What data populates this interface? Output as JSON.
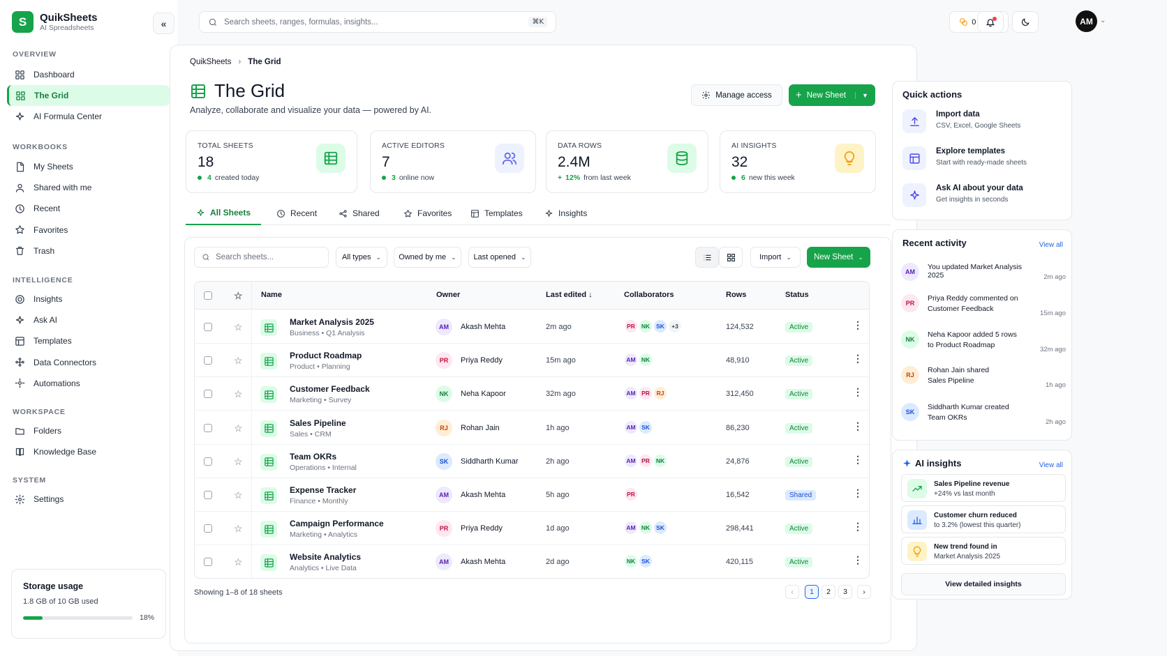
{
  "brand": {
    "name": "QuikSheets",
    "subtitle": "AI Spreadsheets",
    "logo_letter": "S"
  },
  "sidebar": {
    "sections": [
      {
        "label": "OVERVIEW",
        "items": [
          {
            "label": "Dashboard",
            "icon": "grid-icon"
          },
          {
            "label": "The Grid",
            "icon": "grid-icon",
            "active": true
          },
          {
            "label": "AI Formula Center",
            "icon": "sparkle-icon"
          }
        ]
      },
      {
        "label": "WORKBOOKS",
        "items": [
          {
            "label": "My Sheets",
            "icon": "file-icon"
          },
          {
            "label": "Shared with me",
            "icon": "user-icon"
          },
          {
            "label": "Recent",
            "icon": "clock-icon"
          },
          {
            "label": "Favorites",
            "icon": "star-icon"
          },
          {
            "label": "Trash",
            "icon": "trash-icon"
          }
        ]
      },
      {
        "label": "INTELLIGENCE",
        "items": [
          {
            "label": "Insights",
            "icon": "target-icon"
          },
          {
            "label": "Ask AI",
            "icon": "sparkle-icon"
          },
          {
            "label": "Templates",
            "icon": "template-icon"
          },
          {
            "label": "Data Connectors",
            "icon": "connector-icon"
          },
          {
            "label": "Automations",
            "icon": "automation-icon"
          }
        ]
      },
      {
        "label": "WORKSPACE",
        "items": [
          {
            "label": "Folders",
            "icon": "folder-icon"
          },
          {
            "label": "Knowledge Base",
            "icon": "book-icon"
          }
        ]
      },
      {
        "label": "SYSTEM",
        "items": [
          {
            "label": "Settings",
            "icon": "gear-icon"
          }
        ]
      }
    ],
    "storage": {
      "title": "Storage usage",
      "used": "1.8 GB of 10 GB used",
      "percent_label": "18%",
      "percent": 18
    }
  },
  "topbar": {
    "search_placeholder": "Search sheets, ranges, formulas, insights...",
    "shortcut": "⌘K",
    "points": "0 points",
    "avatar": "AM"
  },
  "breadcrumb": {
    "root": "QuikSheets",
    "current": "The Grid"
  },
  "page": {
    "title": "The Grid",
    "subtitle": "Analyze, collaborate and visualize your data — powered by AI.",
    "manage_access": "Manage access",
    "new_sheet": "New Sheet"
  },
  "stats": [
    {
      "label": "TOTAL SHEETS",
      "value": "18",
      "note_num": "4",
      "note": "created today",
      "icon": "sheet-icon",
      "color": "#16a34a",
      "bg": "#dcfce7",
      "prefix": "dot"
    },
    {
      "label": "ACTIVE EDITORS",
      "value": "7",
      "note_num": "3",
      "note": "online now",
      "icon": "users-icon",
      "color": "#6366f1",
      "bg": "#eef2ff",
      "prefix": "dot"
    },
    {
      "label": "DATA ROWS",
      "value": "2.4M",
      "note_num": "12%",
      "note": "from last week",
      "icon": "database-icon",
      "color": "#16a34a",
      "bg": "#dcfce7",
      "prefix": "+"
    },
    {
      "label": "AI INSIGHTS",
      "value": "32",
      "note_num": "6",
      "note": "new this week",
      "icon": "bulb-icon",
      "color": "#f59e0b",
      "bg": "#fef3c7",
      "prefix": "dot"
    }
  ],
  "tabs": [
    {
      "label": "All Sheets",
      "icon": "sparkle-icon",
      "active": true
    },
    {
      "label": "Recent",
      "icon": "clock-icon"
    },
    {
      "label": "Shared",
      "icon": "share-icon"
    },
    {
      "label": "Favorites",
      "icon": "star-icon"
    },
    {
      "label": "Templates",
      "icon": "template-icon"
    },
    {
      "label": "Insights",
      "icon": "sparkle-icon"
    }
  ],
  "filters": {
    "search_placeholder": "Search sheets...",
    "type": "All types",
    "owner": "Owned by me",
    "sort": "Last opened",
    "import": "Import",
    "new_sheet": "New Sheet"
  },
  "table": {
    "columns": {
      "name": "Name",
      "owner": "Owner",
      "edited": "Last edited",
      "collaborators": "Collaborators",
      "rows": "Rows",
      "status": "Status"
    },
    "rows": [
      {
        "name": "Market Analysis 2025",
        "sub": "Business • Q1 Analysis",
        "owner_initials": "AM",
        "owner": "Akash Mehta",
        "edited": "2m ago",
        "collabs": [
          "PR",
          "NK",
          "SK"
        ],
        "more": "+3",
        "rows": "124,532",
        "status": "Active"
      },
      {
        "name": "Product Roadmap",
        "sub": "Product • Planning",
        "owner_initials": "PR",
        "owner": "Priya Reddy",
        "edited": "15m ago",
        "collabs": [
          "AM",
          "NK"
        ],
        "more": "",
        "rows": "48,910",
        "status": "Active"
      },
      {
        "name": "Customer Feedback",
        "sub": "Marketing • Survey",
        "owner_initials": "NK",
        "owner": "Neha Kapoor",
        "edited": "32m ago",
        "collabs": [
          "AM",
          "PR",
          "RJ"
        ],
        "more": "",
        "rows": "312,450",
        "status": "Active"
      },
      {
        "name": "Sales Pipeline",
        "sub": "Sales • CRM",
        "owner_initials": "RJ",
        "owner": "Rohan Jain",
        "edited": "1h ago",
        "collabs": [
          "AM",
          "SK"
        ],
        "more": "",
        "rows": "86,230",
        "status": "Active"
      },
      {
        "name": "Team OKRs",
        "sub": "Operations • Internal",
        "owner_initials": "SK",
        "owner": "Siddharth Kumar",
        "edited": "2h ago",
        "collabs": [
          "AM",
          "PR",
          "NK"
        ],
        "more": "",
        "rows": "24,876",
        "status": "Active"
      },
      {
        "name": "Expense Tracker",
        "sub": "Finance • Monthly",
        "owner_initials": "AM",
        "owner": "Akash Mehta",
        "edited": "5h ago",
        "collabs": [
          "PR"
        ],
        "more": "",
        "rows": "16,542",
        "status": "Shared"
      },
      {
        "name": "Campaign Performance",
        "sub": "Marketing • Analytics",
        "owner_initials": "PR",
        "owner": "Priya Reddy",
        "edited": "1d ago",
        "collabs": [
          "AM",
          "NK",
          "SK"
        ],
        "more": "",
        "rows": "298,441",
        "status": "Active"
      },
      {
        "name": "Website Analytics",
        "sub": "Analytics • Live Data",
        "owner_initials": "AM",
        "owner": "Akash Mehta",
        "edited": "2d ago",
        "collabs": [
          "NK",
          "SK"
        ],
        "more": "",
        "rows": "420,115",
        "status": "Active"
      }
    ],
    "footer": "Showing 1–8 of 18 sheets",
    "pages": [
      "1",
      "2",
      "3"
    ],
    "current_page": "1"
  },
  "avatar_colors": {
    "AM": {
      "bg": "#ede9fe",
      "fg": "#5b21b6"
    },
    "PR": {
      "bg": "#fce7f3",
      "fg": "#be123c"
    },
    "NK": {
      "bg": "#dcfce7",
      "fg": "#15803d"
    },
    "SK": {
      "bg": "#dbeafe",
      "fg": "#1d4ed8"
    },
    "RJ": {
      "bg": "#ffedd5",
      "fg": "#c2410c"
    }
  },
  "quick_actions": {
    "title": "Quick actions",
    "items": [
      {
        "title": "Import data",
        "sub": "CSV, Excel, Google Sheets",
        "icon": "upload-icon"
      },
      {
        "title": "Explore templates",
        "sub": "Start with ready-made sheets",
        "icon": "template-icon"
      },
      {
        "title": "Ask AI about your data",
        "sub": "Get insights in seconds",
        "icon": "sparkle-icon"
      }
    ]
  },
  "recent_activity": {
    "title": "Recent activity",
    "view_all": "View all",
    "items": [
      {
        "initials": "AM",
        "l1": "You updated Market Analysis 2025",
        "l2": "",
        "time": "2m ago"
      },
      {
        "initials": "PR",
        "l1": "Priya Reddy commented on",
        "l2": "Customer Feedback",
        "time": "15m ago"
      },
      {
        "initials": "NK",
        "l1": "Neha Kapoor added 5 rows",
        "l2": "to Product Roadmap",
        "time": "32m ago"
      },
      {
        "initials": "RJ",
        "l1": "Rohan Jain shared",
        "l2": "Sales Pipeline",
        "time": "1h ago"
      },
      {
        "initials": "SK",
        "l1": "Siddharth Kumar created",
        "l2": "Team OKRs",
        "time": "2h ago"
      }
    ]
  },
  "ai_insights": {
    "title": "AI insights",
    "view_all": "View all",
    "items": [
      {
        "l1": "Sales Pipeline revenue",
        "l2": "+24% vs last month",
        "icon": "trend-up-icon",
        "color": "#16a34a",
        "bg": "#dcfce7"
      },
      {
        "l1": "Customer churn reduced",
        "l2": "to 3.2% (lowest this quarter)",
        "icon": "bar-chart-icon",
        "color": "#2563eb",
        "bg": "#dbeafe"
      },
      {
        "l1": "New trend found in",
        "l2": "Market Analysis 2025",
        "icon": "bulb-icon",
        "color": "#f59e0b",
        "bg": "#fef3c7"
      }
    ],
    "button": "View detailed insights"
  }
}
